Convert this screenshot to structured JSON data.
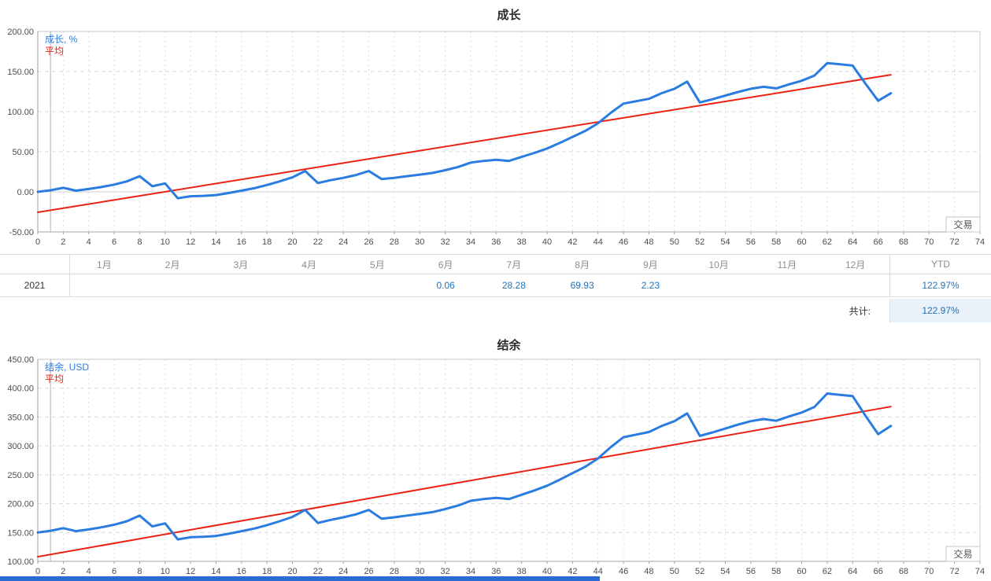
{
  "growth_section": {
    "title": "成长",
    "legend_series": "成长, %",
    "legend_average": "平均",
    "axis_corner_label": "交易"
  },
  "balance_section": {
    "title": "结余",
    "legend_series": "结余, USD",
    "legend_average": "平均",
    "axis_corner_label": "交易"
  },
  "monthly_table": {
    "year": "2021",
    "month_headers": [
      "1月",
      "2月",
      "3月",
      "4月",
      "5月",
      "6月",
      "7月",
      "8月",
      "9月",
      "10月",
      "11月",
      "12月"
    ],
    "ytd_header": "YTD",
    "month_values": [
      "",
      "",
      "",
      "",
      "",
      "0.06",
      "28.28",
      "69.93",
      "2.23",
      "",
      "",
      ""
    ],
    "ytd_value": "122.97%",
    "total_label": "共计:",
    "total_value": "122.97%"
  },
  "colors": {
    "line_blue": "#2a7ce0",
    "line_red": "#ea2213",
    "table_value_blue": "#2272b9",
    "ytd_highlight_bg": "#e9f1fb",
    "bottom_bar_blue": "#2a6bd4"
  },
  "chart_data": [
    {
      "type": "line",
      "title": "成长",
      "xlabel": "交易",
      "ylabel": "成长, %",
      "xlim": [
        0,
        74
      ],
      "xtick_step": 2,
      "ylim": [
        -50,
        200
      ],
      "ytick_step": 50,
      "grid": true,
      "legend_position": "top-left",
      "start_marker_x": 1,
      "series": [
        {
          "name": "成长, %",
          "color": "#2a7ce0",
          "width": 3,
          "y": [
            0,
            2,
            5,
            1.5,
            3.5,
            6,
            9,
            13,
            19.5,
            7,
            10.5,
            -8,
            -5.5,
            -5,
            -4,
            -1.5,
            1.5,
            4.5,
            8.5,
            13,
            18,
            26,
            11,
            14.5,
            17.5,
            21,
            26,
            16,
            17.5,
            19.5,
            21.5,
            23.5,
            27,
            31,
            36.5,
            38.5,
            40,
            38.5,
            43.5,
            48.5,
            54,
            61,
            68.5,
            76,
            85.5,
            98.5,
            110,
            113,
            116,
            123,
            128.5,
            137.5,
            111.5,
            115.5,
            120,
            124.5,
            128.5,
            131,
            129,
            134,
            138.5,
            145,
            160.5,
            159,
            157.5,
            135,
            113.5,
            122.97
          ]
        },
        {
          "name": "平均",
          "color": "#ea2213",
          "width": 2,
          "x": [
            0,
            67
          ],
          "y": [
            -25.5,
            146
          ]
        }
      ]
    },
    {
      "type": "line",
      "title": "结余",
      "xlabel": "交易",
      "ylabel": "结余, USD",
      "xlim": [
        0,
        74
      ],
      "xtick_step": 2,
      "ylim": [
        100,
        450
      ],
      "ytick_step": 50,
      "grid": true,
      "legend_position": "top-left",
      "start_marker_x": 1,
      "series": [
        {
          "name": "结余, USD",
          "color": "#2a7ce0",
          "width": 3,
          "y": [
            150,
            153,
            157.5,
            152.3,
            155.3,
            159,
            163.5,
            169.5,
            179.3,
            160.5,
            165.8,
            138,
            141.8,
            142.5,
            144,
            147.8,
            152.3,
            156.8,
            162.8,
            169.5,
            177,
            189,
            166.5,
            171.8,
            176.3,
            181.5,
            189,
            174,
            176.3,
            179.3,
            182.3,
            185.3,
            190.5,
            196.5,
            204.8,
            207.8,
            210,
            207.8,
            215.3,
            222.8,
            231,
            241.5,
            252.8,
            264,
            278.3,
            297.8,
            315,
            319.5,
            324,
            334.5,
            342.8,
            356.3,
            317.3,
            323.3,
            330,
            336.8,
            342.8,
            346.5,
            343.5,
            351,
            357.8,
            367.5,
            390.8,
            388.5,
            386.3,
            352.5,
            320.3,
            334.5
          ]
        },
        {
          "name": "平均",
          "color": "#ea2213",
          "width": 2,
          "x": [
            0,
            67
          ],
          "y": [
            108,
            368
          ]
        }
      ]
    }
  ]
}
